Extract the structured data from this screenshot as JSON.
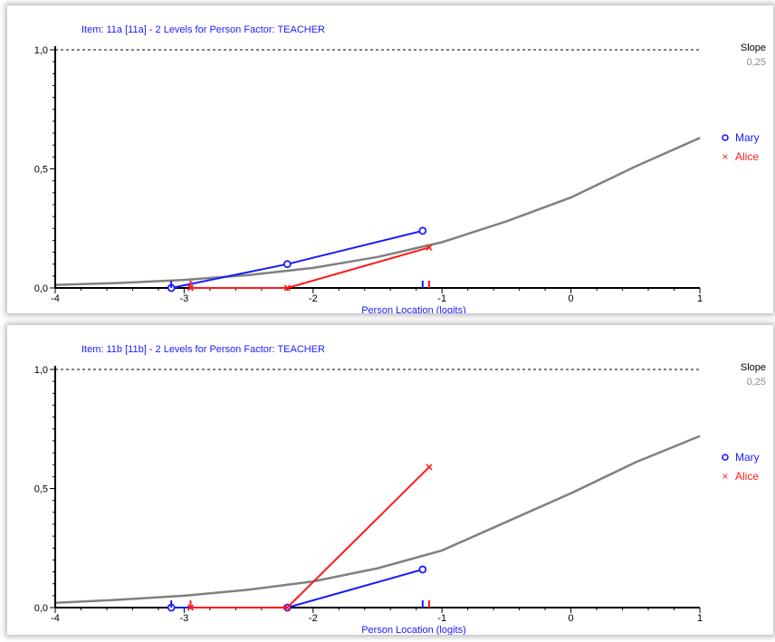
{
  "charts": [
    {
      "title": "Item: 11a [11a] - 2 Levels for Person Factor: TEACHER",
      "slope_label": "Slope",
      "slope_value": "0,25",
      "x_label": "Person Location (logits)"
    },
    {
      "title": "Item: 11b [11b] - 2 Levels for Person Factor: TEACHER",
      "slope_label": "Slope",
      "slope_value": "0,25",
      "x_label": "Person Location (logits)"
    }
  ],
  "chart_data": [
    {
      "type": "line",
      "title": "Item: 11a [11a] - 2 Levels for Person Factor: TEACHER",
      "xlabel": "Person Location (logits)",
      "ylabel": "",
      "xlim": [
        -4,
        1
      ],
      "ylim": [
        0,
        1
      ],
      "x_ticks": [
        "-4",
        "-3",
        "-2",
        "-1",
        "0",
        "1"
      ],
      "y_ticks": [
        "0,0",
        "0,5",
        "1,0"
      ],
      "reference_line_y": 1.0,
      "legend_position": "right",
      "expected_curve": {
        "color": "#808080",
        "points": [
          [
            -4,
            0.013
          ],
          [
            -3.5,
            0.021
          ],
          [
            -3,
            0.034
          ],
          [
            -2.5,
            0.054
          ],
          [
            -2,
            0.084
          ],
          [
            -1.5,
            0.13
          ],
          [
            -1,
            0.192
          ],
          [
            -0.5,
            0.28
          ],
          [
            0,
            0.38
          ],
          [
            0.5,
            0.51
          ],
          [
            1,
            0.63
          ]
        ]
      },
      "series": [
        {
          "name": "Mary",
          "marker": "o",
          "color": "#1a1aff",
          "x": [
            -3.1,
            -2.2,
            -1.15
          ],
          "y": [
            0.0,
            0.1,
            0.24
          ],
          "range_ticks_x": [
            -3.1,
            -1.15
          ]
        },
        {
          "name": "Alice",
          "marker": "x",
          "color": "#ff1a1a",
          "x": [
            -2.95,
            -2.2,
            -1.1
          ],
          "y": [
            0.0,
            0.0,
            0.17
          ],
          "range_ticks_x": [
            -2.95,
            -1.1
          ]
        }
      ]
    },
    {
      "type": "line",
      "title": "Item: 11b [11b] - 2 Levels for Person Factor: TEACHER",
      "xlabel": "Person Location (logits)",
      "ylabel": "",
      "xlim": [
        -4,
        1
      ],
      "ylim": [
        0,
        1
      ],
      "x_ticks": [
        "-4",
        "-3",
        "-2",
        "-1",
        "0",
        "1"
      ],
      "y_ticks": [
        "0,0",
        "0,5",
        "1,0"
      ],
      "reference_line_y": 1.0,
      "legend_position": "right",
      "expected_curve": {
        "color": "#808080",
        "points": [
          [
            -4,
            0.02
          ],
          [
            -3.5,
            0.033
          ],
          [
            -3,
            0.05
          ],
          [
            -2.5,
            0.075
          ],
          [
            -2,
            0.11
          ],
          [
            -1.5,
            0.165
          ],
          [
            -1,
            0.24
          ],
          [
            -0.5,
            0.36
          ],
          [
            0,
            0.48
          ],
          [
            0.5,
            0.61
          ],
          [
            1,
            0.72
          ]
        ]
      },
      "series": [
        {
          "name": "Mary",
          "marker": "o",
          "color": "#1a1aff",
          "x": [
            -3.1,
            -2.2,
            -1.15
          ],
          "y": [
            0.0,
            0.0,
            0.16
          ],
          "range_ticks_x": [
            -3.1,
            -1.15
          ]
        },
        {
          "name": "Alice",
          "marker": "x",
          "color": "#ff1a1a",
          "x": [
            -2.95,
            -2.2,
            -1.1
          ],
          "y": [
            0.0,
            0.0,
            0.59
          ],
          "range_ticks_x": [
            -2.95,
            -1.1
          ]
        }
      ]
    }
  ]
}
